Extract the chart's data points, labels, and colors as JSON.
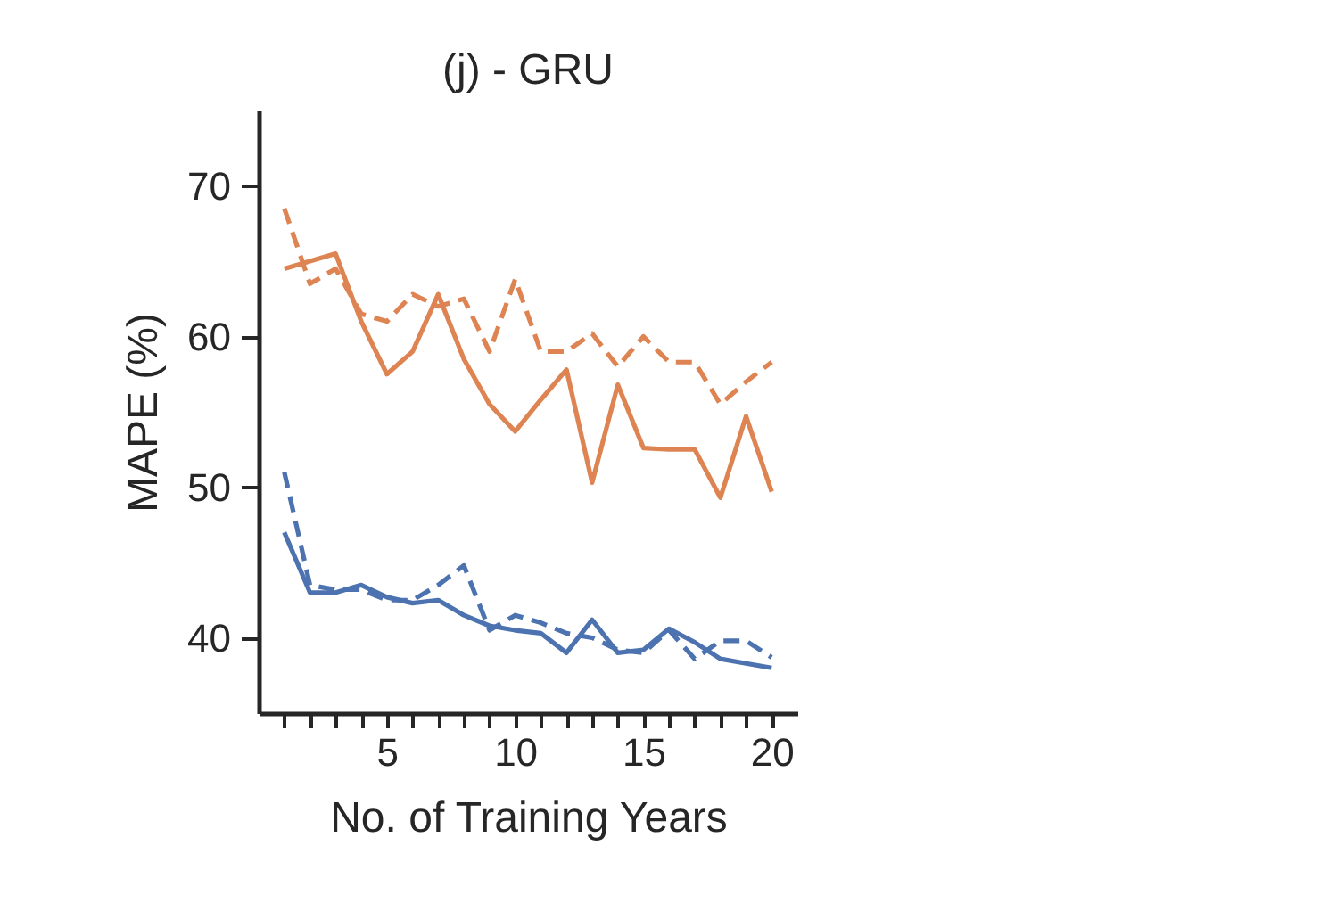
{
  "chart_data": {
    "type": "line",
    "title": "(j) - GRU",
    "xlabel": "No. of Training Years",
    "ylabel": "MAPE (%)",
    "x": [
      1,
      2,
      3,
      4,
      5,
      6,
      7,
      8,
      9,
      10,
      11,
      12,
      13,
      14,
      15,
      16,
      17,
      18,
      19,
      20
    ],
    "series": [
      {
        "color": "#dd8452",
        "line_style": "solid",
        "values": [
          64.5,
          65,
          65.5,
          61,
          57.5,
          59,
          62.8,
          58.5,
          55.5,
          53.7,
          55.8,
          57.8,
          50.3,
          56.8,
          52.6,
          52.5,
          52.5,
          49.3,
          54.7,
          49.7
        ]
      },
      {
        "color": "#dd8452",
        "line_style": "dashed",
        "values": [
          68.5,
          63.5,
          64.5,
          61.5,
          61,
          62.8,
          62,
          62.5,
          59,
          63.8,
          59,
          59,
          60.2,
          58,
          60,
          58.3,
          58.3,
          55.5,
          57,
          58.3
        ]
      },
      {
        "color": "#4c72b0",
        "line_style": "solid",
        "values": [
          47,
          43,
          43,
          43.5,
          42.7,
          42.3,
          42.5,
          41.5,
          40.8,
          40.5,
          40.3,
          39,
          41.2,
          39,
          39.2,
          40.6,
          39.7,
          38.6,
          38.3,
          38
        ]
      },
      {
        "color": "#4c72b0",
        "line_style": "dashed",
        "values": [
          51,
          43.5,
          43.2,
          43.2,
          42.5,
          42.5,
          43.5,
          44.8,
          40.5,
          41.5,
          41,
          40.3,
          40,
          39.2,
          39,
          40.5,
          38.6,
          39.8,
          39.8,
          38.7
        ]
      }
    ],
    "xlim": [
      0,
      21
    ],
    "ylim": [
      35,
      75
    ],
    "xticks": [
      {
        "value": 1,
        "label": null
      },
      {
        "value": 2,
        "label": null
      },
      {
        "value": 3,
        "label": null
      },
      {
        "value": 4,
        "label": null
      },
      5,
      {
        "value": 6,
        "label": null
      },
      {
        "value": 7,
        "label": null
      },
      {
        "value": 8,
        "label": null
      },
      {
        "value": 9,
        "label": null
      },
      10,
      {
        "value": 11,
        "label": null
      },
      {
        "value": 12,
        "label": null
      },
      {
        "value": 13,
        "label": null
      },
      {
        "value": 14,
        "label": null
      },
      15,
      {
        "value": 16,
        "label": null
      },
      {
        "value": 17,
        "label": null
      },
      {
        "value": 18,
        "label": null
      },
      {
        "value": 19,
        "label": null
      },
      20
    ],
    "yticks": [
      40,
      50,
      60,
      70
    ],
    "grid": false
  }
}
